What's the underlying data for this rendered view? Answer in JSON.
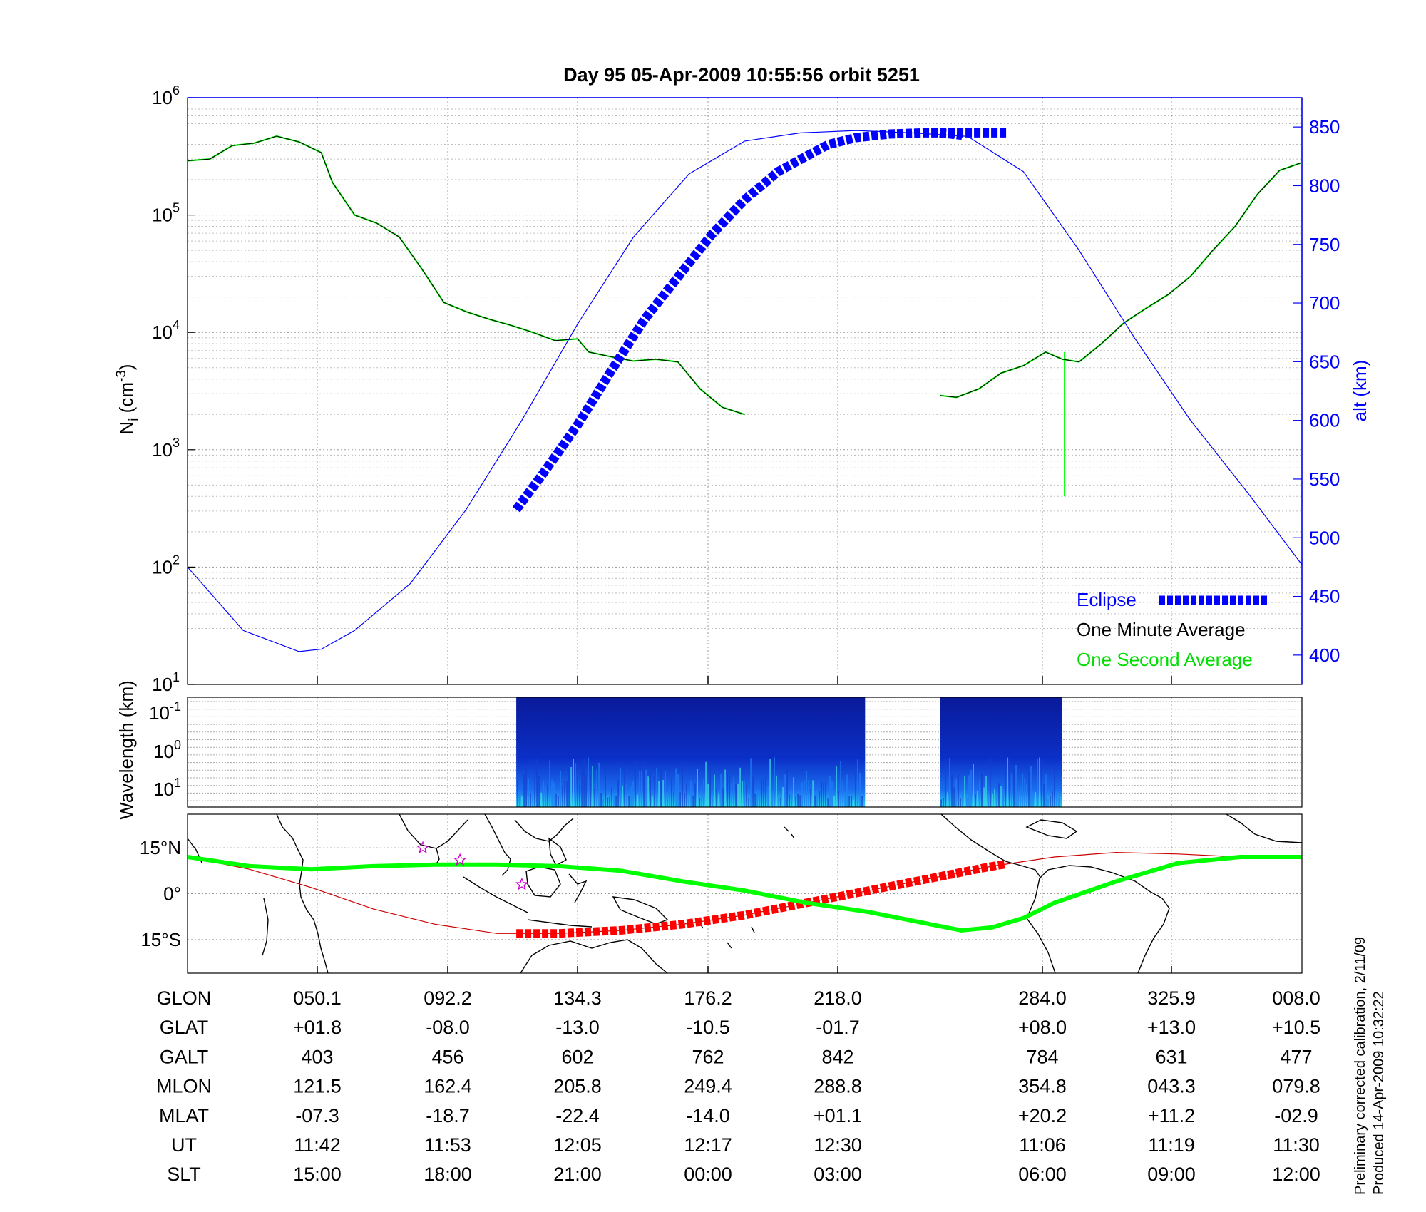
{
  "title": "Day 95  05-Apr-2009 10:55:56   orbit 5251",
  "colors": {
    "eclipse": "#0000ff",
    "one_minute": "#000000",
    "one_second": "#00ff00",
    "altitude": "#0000ff",
    "satellite_track_thick": "#ff0000",
    "satellite_track_thin": "#cc0000",
    "magnetic_equator": "#00ff00",
    "stars": "#cc00cc"
  },
  "chart_data": [
    {
      "type": "line",
      "panel": "density",
      "ylabel": "N_i (cm^-3)",
      "ylabel_parts": {
        "base": "N",
        "sub": "i",
        "unit_open": " (cm",
        "sup": "-3",
        "unit_close": ")"
      },
      "y_scale": "log",
      "ylim": [
        10,
        1000000
      ],
      "yticks": [
        {
          "base": "10",
          "exp": "1",
          "value": 10
        },
        {
          "base": "10",
          "exp": "2",
          "value": 100
        },
        {
          "base": "10",
          "exp": "3",
          "value": 1000
        },
        {
          "base": "10",
          "exp": "4",
          "value": 10000
        },
        {
          "base": "10",
          "exp": "5",
          "value": 100000
        },
        {
          "base": "10",
          "exp": "6",
          "value": 1000000
        }
      ],
      "y2label": "alt (km)",
      "y2lim": [
        375,
        875
      ],
      "y2ticks": [
        "400",
        "450",
        "500",
        "550",
        "600",
        "650",
        "700",
        "750",
        "800",
        "850"
      ],
      "x_index_range": [
        0,
        100
      ],
      "legend": {
        "placement": "bottom-right",
        "entries": [
          {
            "name": "Eclipse",
            "style": "thick-dashed"
          },
          {
            "name": "One Minute Average",
            "style": "line"
          },
          {
            "name": "One Second Average",
            "style": "line"
          }
        ]
      },
      "series": [
        {
          "name": "One Minute Average",
          "segments": [
            {
              "x": [
                0,
                2,
                4,
                6,
                8,
                10,
                12,
                13,
                15,
                17,
                19,
                21,
                23,
                25,
                27,
                29,
                31,
                33,
                35,
                36,
                38,
                40,
                42,
                44,
                46,
                48,
                50,
                52,
                54,
                56,
                58,
                60,
                62,
                64,
                66,
                68,
                70,
                72,
                73.5
              ],
              "y": [
                290000,
                300000,
                390000,
                410000,
                470000,
                420000,
                340000,
                190000,
                100000,
                85000,
                65000,
                35000,
                18000,
                15000,
                13000,
                11500,
                10000,
                8500,
                8800,
                6800,
                6200,
                5700,
                5900,
                5600,
                3300,
                2300,
                2000,
                null,
                null,
                null,
                null,
                null,
                null,
                null,
                null,
                null,
                null,
                null,
                null
              ]
            },
            {
              "x": [
                67.5,
                69,
                71,
                73,
                75,
                77,
                78.5,
                80,
                82,
                84,
                86,
                88,
                90,
                92,
                94,
                96,
                98,
                100
              ],
              "y": [
                2900,
                2800,
                3300,
                4500,
                5200,
                6800,
                5900,
                5600,
                8000,
                12000,
                16000,
                21000,
                30000,
                50000,
                80000,
                150000,
                240000,
                280000
              ]
            }
          ]
        },
        {
          "name": "One Second Average",
          "segments": [
            {
              "x": [
                0,
                2,
                4,
                6,
                8,
                10,
                12,
                13,
                15,
                17,
                19,
                21,
                23,
                25,
                27,
                29,
                31,
                33,
                35,
                36,
                38,
                40,
                42,
                44,
                46,
                48,
                50,
                52,
                54,
                56,
                58,
                60,
                62,
                64,
                66,
                68,
                70,
                72,
                73.5
              ],
              "y": [
                290000,
                300000,
                390000,
                410000,
                470000,
                420000,
                340000,
                190000,
                100000,
                85000,
                65000,
                35000,
                18000,
                15000,
                13000,
                11500,
                10000,
                8500,
                8800,
                6800,
                6200,
                5700,
                5900,
                5600,
                3300,
                2300,
                2000,
                null,
                null,
                null,
                null,
                null,
                null,
                null,
                null,
                null,
                null,
                null,
                null
              ]
            },
            {
              "x": [
                67.5,
                69,
                71,
                73,
                75,
                77,
                78.5,
                80,
                82,
                84,
                86,
                88,
                90,
                92,
                94,
                96,
                98,
                100
              ],
              "y": [
                2900,
                2800,
                3300,
                4500,
                5200,
                6800,
                5900,
                5600,
                8000,
                12000,
                16000,
                21000,
                30000,
                50000,
                80000,
                150000,
                240000,
                280000
              ]
            }
          ],
          "spike": {
            "x": 78.7,
            "y_top": 6800,
            "y_bottom": 400
          }
        },
        {
          "name": "alt (km)",
          "axis": "right",
          "x": [
            0,
            5,
            10,
            12,
            15,
            20,
            25,
            30,
            35,
            40,
            45,
            50,
            55,
            60,
            65,
            70,
            75,
            80,
            85,
            90,
            95,
            100
          ],
          "y": [
            475,
            421,
            403,
            405,
            421,
            461,
            524,
            600,
            682,
            756,
            810,
            838,
            845,
            847,
            845,
            842,
            812,
            745,
            670,
            600,
            540,
            477
          ]
        },
        {
          "name": "Eclipse",
          "axis": "right",
          "segments": [
            {
              "x": [
                29.5,
                32,
                35,
                38,
                41,
                44,
                47,
                50,
                53,
                55.5,
                57.5,
                60,
                63,
                66,
                69,
                71,
                72.5,
                73.5
              ],
              "y": [
                524,
                556,
                596,
                642,
                686,
                722,
                758,
                788,
                812,
                825,
                835,
                841,
                844,
                845,
                845,
                845,
                845,
                845
              ]
            },
            {
              "x": [
                67.5,
                69.5
              ],
              "y": [
                845,
                843
              ]
            }
          ]
        }
      ]
    },
    {
      "type": "heatmap",
      "panel": "spectrogram",
      "ylabel": "Wavelength (km)",
      "yticks": [
        {
          "base": "10",
          "exp": "-1"
        },
        {
          "base": "10",
          "exp": "0"
        },
        {
          "base": "10",
          "exp": "1"
        }
      ],
      "data_blocks_x": [
        [
          29.5,
          60.8
        ],
        [
          67.5,
          78.5
        ]
      ]
    },
    {
      "type": "line",
      "panel": "map",
      "yticks": [
        "15°N",
        "0°",
        "15°S"
      ],
      "ylim": [
        -26,
        26
      ],
      "xlim": [
        0,
        360
      ],
      "satellite_track": {
        "x": [
          0,
          20,
          40,
          60,
          80,
          100,
          120,
          140,
          160,
          180,
          200,
          220,
          240,
          260,
          280,
          300,
          320,
          340,
          360
        ],
        "y": [
          12,
          8,
          2,
          -5,
          -10,
          -13,
          -13,
          -12,
          -10,
          -7,
          -3,
          1,
          5,
          9,
          12,
          13.5,
          13,
          12,
          12
        ]
      },
      "magnetic_equator": {
        "x": [
          0,
          20,
          40,
          60,
          80,
          100,
          120,
          140,
          160,
          180,
          200,
          220,
          230,
          240,
          250,
          260,
          270,
          280,
          300,
          320,
          340,
          360
        ],
        "y": [
          12,
          9,
          8,
          9,
          9.5,
          9.5,
          9,
          7.5,
          4,
          1,
          -3,
          -6,
          -8,
          -10,
          -12,
          -11,
          -8,
          -3,
          4,
          10,
          12,
          12
        ]
      },
      "star_markers": [
        {
          "x": 76,
          "y": 15
        },
        {
          "x": 88,
          "y": 11
        },
        {
          "x": 108,
          "y": 3
        }
      ]
    }
  ],
  "table": {
    "row_labels": [
      "GLON",
      "GLAT",
      "GALT",
      "MLON",
      "MLAT",
      "UT",
      "SLT"
    ],
    "columns": [
      [
        "050.1",
        "+01.8",
        "403",
        "121.5",
        "-07.3",
        "11:42",
        "15:00"
      ],
      [
        "092.2",
        "-08.0",
        "456",
        "162.4",
        "-18.7",
        "11:53",
        "18:00"
      ],
      [
        "134.3",
        "-13.0",
        "602",
        "205.8",
        "-22.4",
        "12:05",
        "21:00"
      ],
      [
        "176.2",
        "-10.5",
        "762",
        "249.4",
        "-14.0",
        "12:17",
        "00:00"
      ],
      [
        "218.0",
        "-01.7",
        "842",
        "288.8",
        "+01.1",
        "12:30",
        "03:00"
      ],
      [
        "284.0",
        "+08.0",
        "784",
        "354.8",
        "+20.2",
        "11:06",
        "06:00"
      ],
      [
        "325.9",
        "+13.0",
        "631",
        "043.3",
        "+11.2",
        "11:19",
        "09:00"
      ],
      [
        "008.0",
        "+10.5",
        "477",
        "079.8",
        "-02.9",
        "11:30",
        "12:00"
      ]
    ]
  },
  "side_note": {
    "line1": "Preliminary corrected calibration, 2/11/09",
    "line2": "Produced 14-Apr-2009 10:32:22"
  }
}
